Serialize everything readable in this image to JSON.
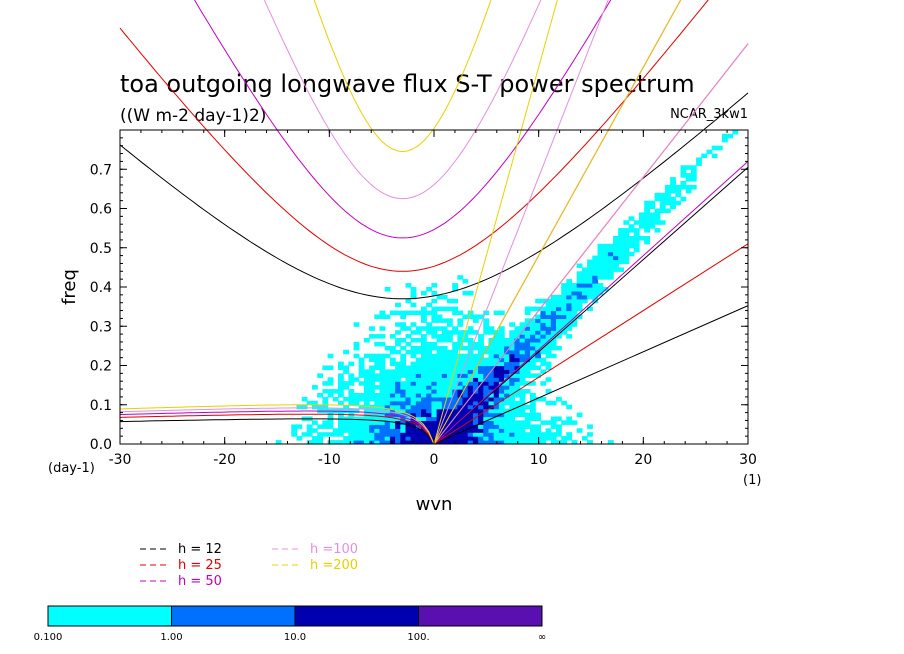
{
  "chart_data": {
    "type": "heatmap",
    "title": "toa outgoing longwave flux S-T power spectrum",
    "subtitle": "((W m-2 day-1)2)",
    "tag": "NCAR_3kw1",
    "xlabel": "wvn",
    "ylabel": "freq",
    "x_unit": "(1)",
    "y_unit": "(day-1)",
    "xlim": [
      -30,
      30
    ],
    "ylim": [
      0,
      0.8
    ],
    "x_ticks": [
      "-30",
      "-20",
      "-10",
      "0",
      "10",
      "20",
      "30"
    ],
    "x_tick_values": [
      -30,
      -20,
      -10,
      0,
      10,
      20,
      30
    ],
    "y_ticks": [
      "0.0",
      "0.1",
      "0.2",
      "0.3",
      "0.4",
      "0.5",
      "0.6",
      "0.7"
    ],
    "y_tick_values": [
      0,
      0.1,
      0.2,
      0.3,
      0.4,
      0.5,
      0.6,
      0.7
    ],
    "contour_levels": [
      0.1,
      1,
      10,
      100
    ],
    "colorbar": {
      "labels": [
        "0.100",
        "1.00",
        "10.0",
        "100.",
        "∞"
      ],
      "colors": [
        "#00ffff",
        "#0070ff",
        "#0000b0",
        "#5a10b0"
      ]
    },
    "curves_legend": [
      {
        "label": "h = 12",
        "color": "#000000"
      },
      {
        "label": "h = 25",
        "color": "#e00000"
      },
      {
        "label": "h = 50",
        "color": "#c000c0"
      },
      {
        "label": "h =100",
        "color": "#e090e0"
      },
      {
        "label": "h =200",
        "color": "#e8d000"
      }
    ],
    "dispersion_curves": [
      {
        "h": 12,
        "color": "#000000",
        "n1_min_freq": 0.37,
        "kelvin_slope": 0.0235,
        "rossby_max": 0.08
      },
      {
        "h": 25,
        "color": "#e00000",
        "n1_min_freq": 0.44,
        "kelvin_slope": 0.034,
        "rossby_max": 0.095
      },
      {
        "h": 50,
        "color": "#c000c0",
        "n1_min_freq": 0.525,
        "kelvin_slope": 0.048,
        "rossby_max": 0.105
      },
      {
        "h": 100,
        "color": "#e090e0",
        "n1_min_freq": 0.625,
        "kelvin_slope": 0.068,
        "rossby_max": 0.115
      },
      {
        "h": 200,
        "color": "#e8d000",
        "n1_min_freq": 0.745,
        "kelvin_slope": 0.096,
        "rossby_max": 0.125
      }
    ]
  }
}
